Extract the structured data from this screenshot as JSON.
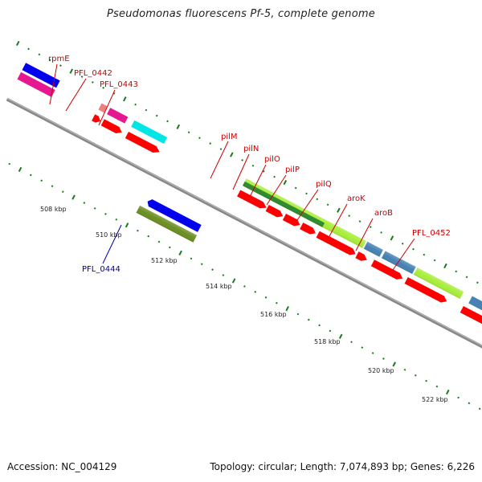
{
  "title": "Pseudomonas fluorescens Pf-5, complete genome",
  "footer": {
    "accession": "Accession: NC_004129",
    "stats": "Topology: circular; Length: 7,074,893 bp; Genes: 6,226"
  },
  "ticks": [
    "508 kbp",
    "510 kbp",
    "512 kbp",
    "514 kbp",
    "516 kbp",
    "518 kbp",
    "520 kbp",
    "522 kbp"
  ],
  "labels": {
    "rpmE": "rpmE",
    "pfl0442": "PFL_0442",
    "pfl0443": "PFL_0443",
    "pilM": "pilM",
    "pilN": "pilN",
    "pilO": "pilO",
    "pilP": "pilP",
    "pilQ": "pilQ",
    "aroK": "aroK",
    "aroB": "aroB",
    "pfl0452": "PFL_0452",
    "pfl0444": "PFL_0444"
  },
  "colors": {
    "label_red": "#cc0000",
    "label_blue": "#0000aa",
    "cds_red": "#ff0000",
    "backbone": "#888888",
    "tick_green": "#1a7a1a",
    "blue": "#0000ee",
    "magenta": "#e5188f",
    "cyan": "#00e5e5",
    "salmon": "#f08080",
    "lime": "#a8ee3a",
    "dark_green": "#2e8b2e",
    "olive": "#6b8e23",
    "steel_blue": "#4682b4"
  }
}
